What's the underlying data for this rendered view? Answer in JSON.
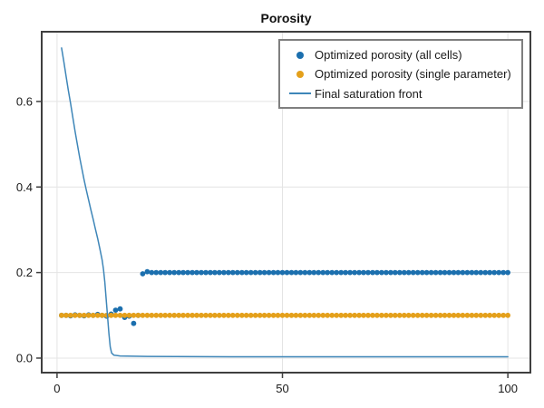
{
  "chart_data": {
    "type": "scatter",
    "title": "Porosity",
    "xlabel": "",
    "ylabel": "",
    "xlim": [
      -3.4,
      105.0
    ],
    "ylim": [
      -0.034,
      0.763
    ],
    "grid": true,
    "legend_position": "top-right",
    "xticks": {
      "values": [
        0,
        50,
        100
      ],
      "labels": [
        "0",
        "50",
        "100"
      ]
    },
    "yticks": {
      "values": [
        0.0,
        0.2,
        0.4,
        0.6
      ],
      "labels": [
        "0.0",
        "0.2",
        "0.4",
        "0.6"
      ]
    },
    "colors": {
      "grid": "#e4e4e4",
      "spine": "#3f3f3f",
      "text": "#1a1a1a",
      "legend_border": "#7f7f7f"
    },
    "series": [
      {
        "name": "Optimized porosity (all cells)",
        "type": "scatter",
        "color": "#1b6fae",
        "marker": "circle",
        "x_start": 1,
        "x_step": 1,
        "y": [
          0.1,
          0.1,
          0.099,
          0.101,
          0.1,
          0.099,
          0.101,
          0.1,
          0.102,
          0.1,
          0.098,
          0.103,
          0.112,
          0.115,
          0.095,
          0.098,
          0.081,
          0.1,
          0.197,
          0.202,
          0.2,
          0.2,
          0.2,
          0.2,
          0.2,
          0.2,
          0.2,
          0.2,
          0.2,
          0.2,
          0.2,
          0.2,
          0.2,
          0.2,
          0.2,
          0.2,
          0.2,
          0.2,
          0.2,
          0.2,
          0.2,
          0.2,
          0.2,
          0.2,
          0.2,
          0.2,
          0.2,
          0.2,
          0.2,
          0.2,
          0.2,
          0.2,
          0.2,
          0.2,
          0.2,
          0.2,
          0.2,
          0.2,
          0.2,
          0.2,
          0.2,
          0.2,
          0.2,
          0.2,
          0.2,
          0.2,
          0.2,
          0.2,
          0.2,
          0.2,
          0.2,
          0.2,
          0.2,
          0.2,
          0.2,
          0.2,
          0.2,
          0.2,
          0.2,
          0.2,
          0.2,
          0.2,
          0.2,
          0.2,
          0.2,
          0.2,
          0.2,
          0.2,
          0.2,
          0.2,
          0.2,
          0.2,
          0.2,
          0.2,
          0.2,
          0.2,
          0.2,
          0.2,
          0.2,
          0.2
        ]
      },
      {
        "name": "Optimized porosity (single parameter)",
        "type": "scatter",
        "color": "#e4a01b",
        "marker": "circle",
        "x_start": 1,
        "x_step": 1,
        "y": [
          0.1,
          0.1,
          0.1,
          0.1,
          0.1,
          0.1,
          0.1,
          0.1,
          0.1,
          0.1,
          0.1,
          0.1,
          0.1,
          0.1,
          0.1,
          0.1,
          0.1,
          0.1,
          0.1,
          0.1,
          0.1,
          0.1,
          0.1,
          0.1,
          0.1,
          0.1,
          0.1,
          0.1,
          0.1,
          0.1,
          0.1,
          0.1,
          0.1,
          0.1,
          0.1,
          0.1,
          0.1,
          0.1,
          0.1,
          0.1,
          0.1,
          0.1,
          0.1,
          0.1,
          0.1,
          0.1,
          0.1,
          0.1,
          0.1,
          0.1,
          0.1,
          0.1,
          0.1,
          0.1,
          0.1,
          0.1,
          0.1,
          0.1,
          0.1,
          0.1,
          0.1,
          0.1,
          0.1,
          0.1,
          0.1,
          0.1,
          0.1,
          0.1,
          0.1,
          0.1,
          0.1,
          0.1,
          0.1,
          0.1,
          0.1,
          0.1,
          0.1,
          0.1,
          0.1,
          0.1,
          0.1,
          0.1,
          0.1,
          0.1,
          0.1,
          0.1,
          0.1,
          0.1,
          0.1,
          0.1,
          0.1,
          0.1,
          0.1,
          0.1,
          0.1,
          0.1,
          0.1,
          0.1,
          0.1,
          0.1
        ]
      },
      {
        "name": "Final saturation front",
        "type": "line",
        "color": "#3e86b8",
        "points": [
          [
            1,
            0.725
          ],
          [
            1.5,
            0.693
          ],
          [
            2,
            0.659
          ],
          [
            2.5,
            0.627
          ],
          [
            3,
            0.596
          ],
          [
            3.5,
            0.563
          ],
          [
            4,
            0.53
          ],
          [
            4.5,
            0.5
          ],
          [
            5,
            0.47
          ],
          [
            5.5,
            0.443
          ],
          [
            6,
            0.417
          ],
          [
            6.5,
            0.393
          ],
          [
            7,
            0.37
          ],
          [
            7.5,
            0.347
          ],
          [
            8,
            0.325
          ],
          [
            8.5,
            0.302
          ],
          [
            9,
            0.28
          ],
          [
            9.5,
            0.256
          ],
          [
            10,
            0.23
          ],
          [
            10.3,
            0.208
          ],
          [
            10.6,
            0.178
          ],
          [
            10.9,
            0.138
          ],
          [
            11.2,
            0.098
          ],
          [
            11.5,
            0.058
          ],
          [
            11.8,
            0.026
          ],
          [
            12.1,
            0.012
          ],
          [
            12.6,
            0.007
          ],
          [
            14,
            0.005
          ],
          [
            20,
            0.004
          ],
          [
            40,
            0.003
          ],
          [
            70,
            0.003
          ],
          [
            100,
            0.003
          ]
        ]
      }
    ]
  }
}
